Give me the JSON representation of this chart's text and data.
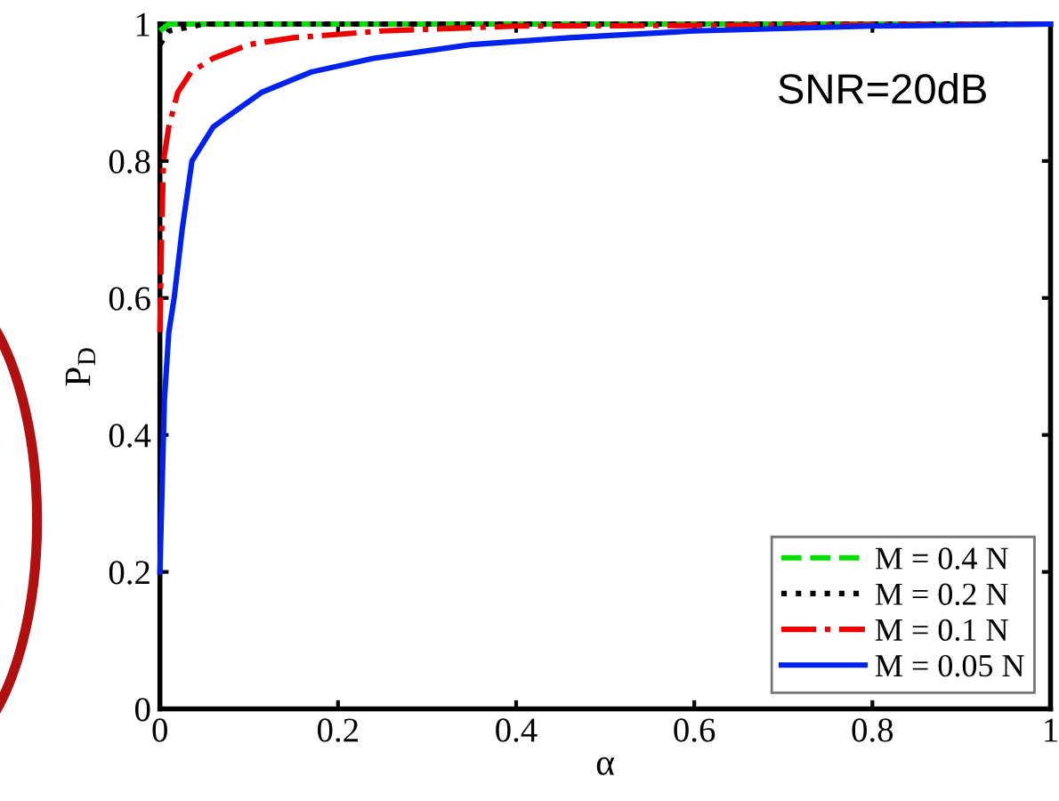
{
  "chart_data": {
    "type": "line",
    "xlabel": "α",
    "ylabel": "P$_{D}$",
    "annotations": [
      "SNR=20dB"
    ],
    "xlim": [
      0,
      1
    ],
    "ylim": [
      0,
      1
    ],
    "xticks": [
      0,
      0.2,
      0.4,
      0.6,
      0.8,
      1
    ],
    "yticks": [
      0,
      0.2,
      0.4,
      0.6,
      0.8,
      1
    ],
    "grid": false,
    "legend": "bottom right",
    "marker": "none",
    "series": [
      {
        "name": "M = 0.4 N",
        "color": "#00dd00",
        "line_style": "dashed",
        "x": [
          0,
          0.01,
          1
        ],
        "values": [
          0.99,
          1,
          1
        ]
      },
      {
        "name": "M = 0.2 N",
        "color": "#000000",
        "line_style": "dotted",
        "x": [
          0,
          0.01,
          0.05,
          1
        ],
        "values": [
          0.97,
          0.99,
          1,
          1
        ]
      },
      {
        "name": "M = 0.1 N",
        "color": "#ee0000",
        "line_style": "dashdot",
        "x": [
          0,
          0.002,
          0.004,
          0.01,
          0.02,
          0.035,
          0.06,
          0.1,
          0.15,
          0.25,
          0.4,
          1
        ],
        "values": [
          0.55,
          0.7,
          0.8,
          0.85,
          0.9,
          0.93,
          0.95,
          0.97,
          0.98,
          0.99,
          0.997,
          1
        ]
      },
      {
        "name": "M = 0.05 N",
        "color": "#0022ee",
        "line_style": "solid",
        "x": [
          0,
          0.005,
          0.01,
          0.016,
          0.025,
          0.036,
          0.06,
          0.114,
          0.17,
          0.24,
          0.35,
          0.46,
          0.6,
          0.8,
          1
        ],
        "values": [
          0.2,
          0.45,
          0.55,
          0.6,
          0.7,
          0.8,
          0.85,
          0.9,
          0.93,
          0.95,
          0.97,
          0.98,
          0.99,
          0.997,
          1
        ]
      }
    ]
  }
}
